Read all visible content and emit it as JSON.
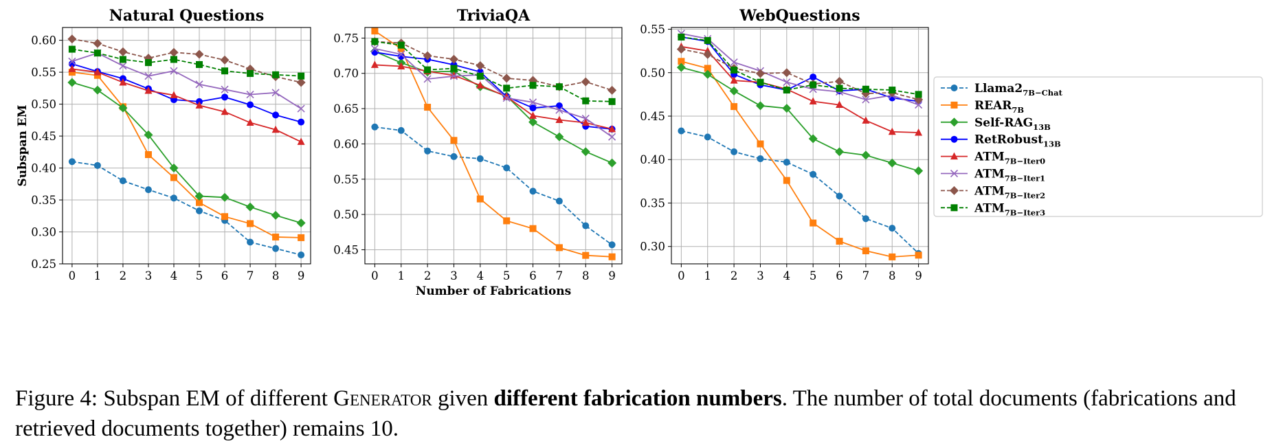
{
  "chart_data": [
    {
      "type": "line",
      "title": "Natural Questions",
      "ylabel": "Subspan EM",
      "xlabel": "",
      "x": [
        0,
        1,
        2,
        3,
        4,
        5,
        6,
        7,
        8,
        9
      ],
      "xticks": [
        "0",
        "1",
        "2",
        "3",
        "4",
        "5",
        "6",
        "7",
        "8",
        "9"
      ],
      "ylim": [
        0.25,
        0.62
      ],
      "yticks": [
        "0.25",
        "0.30",
        "0.35",
        "0.40",
        "0.45",
        "0.50",
        "0.55",
        "0.60"
      ],
      "grid": true,
      "series": [
        {
          "name": "Llama2 7B-Chat",
          "values": [
            0.41,
            0.404,
            0.38,
            0.366,
            0.353,
            0.333,
            0.318,
            0.284,
            0.274,
            0.264
          ]
        },
        {
          "name": "REAR 7B",
          "values": [
            0.55,
            0.545,
            0.496,
            0.421,
            0.385,
            0.346,
            0.324,
            0.313,
            0.292,
            0.291
          ]
        },
        {
          "name": "Self-RAG 13B",
          "values": [
            0.534,
            0.522,
            0.494,
            0.452,
            0.4,
            0.356,
            0.354,
            0.339,
            0.326,
            0.314
          ]
        },
        {
          "name": "RetRobust 13B",
          "values": [
            0.563,
            0.551,
            0.54,
            0.524,
            0.507,
            0.504,
            0.511,
            0.499,
            0.483,
            0.472
          ]
        },
        {
          "name": "ATM 7B-Iter0",
          "values": [
            0.555,
            0.55,
            0.534,
            0.521,
            0.514,
            0.498,
            0.488,
            0.471,
            0.46,
            0.441
          ]
        },
        {
          "name": "ATM 7B-Iter1",
          "values": [
            0.567,
            0.58,
            0.56,
            0.544,
            0.552,
            0.531,
            0.523,
            0.515,
            0.518,
            0.493
          ]
        },
        {
          "name": "ATM 7B-Iter2",
          "values": [
            0.602,
            0.595,
            0.582,
            0.572,
            0.581,
            0.578,
            0.569,
            0.555,
            0.543,
            0.534
          ]
        },
        {
          "name": "ATM 7B-Iter3",
          "values": [
            0.586,
            0.58,
            0.57,
            0.565,
            0.57,
            0.562,
            0.552,
            0.548,
            0.546,
            0.544
          ]
        }
      ]
    },
    {
      "type": "line",
      "title": "TriviaQA",
      "ylabel": "",
      "xlabel": "Number of Fabrications",
      "x": [
        0,
        1,
        2,
        3,
        4,
        5,
        6,
        7,
        8,
        9
      ],
      "xticks": [
        "0",
        "1",
        "2",
        "3",
        "4",
        "5",
        "6",
        "7",
        "8",
        "9"
      ],
      "ylim": [
        0.43,
        0.765
      ],
      "yticks": [
        "0.45",
        "0.50",
        "0.55",
        "0.60",
        "0.65",
        "0.70",
        "0.75"
      ],
      "grid": true,
      "series": [
        {
          "name": "Llama2 7B-Chat",
          "values": [
            0.624,
            0.619,
            0.59,
            0.582,
            0.579,
            0.566,
            0.533,
            0.519,
            0.484,
            0.457
          ]
        },
        {
          "name": "REAR 7B",
          "values": [
            0.76,
            0.735,
            0.652,
            0.605,
            0.522,
            0.491,
            0.48,
            0.453,
            0.442,
            0.44
          ]
        },
        {
          "name": "Self-RAG 13B",
          "values": [
            0.731,
            0.715,
            0.702,
            0.703,
            0.681,
            0.668,
            0.631,
            0.61,
            0.589,
            0.573
          ]
        },
        {
          "name": "RetRobust 13B",
          "values": [
            0.73,
            0.724,
            0.72,
            0.712,
            0.702,
            0.667,
            0.651,
            0.654,
            0.625,
            0.621
          ]
        },
        {
          "name": "ATM 7B-Iter0",
          "values": [
            0.712,
            0.71,
            0.703,
            0.697,
            0.683,
            0.667,
            0.64,
            0.634,
            0.63,
            0.621
          ]
        },
        {
          "name": "ATM 7B-Iter1",
          "values": [
            0.735,
            0.727,
            0.692,
            0.696,
            0.698,
            0.665,
            0.659,
            0.648,
            0.636,
            0.61
          ]
        },
        {
          "name": "ATM 7B-Iter2",
          "values": [
            0.745,
            0.743,
            0.725,
            0.72,
            0.711,
            0.693,
            0.69,
            0.681,
            0.688,
            0.676
          ]
        },
        {
          "name": "ATM 7B-Iter3",
          "values": [
            0.745,
            0.74,
            0.705,
            0.707,
            0.696,
            0.679,
            0.683,
            0.681,
            0.661,
            0.66
          ]
        }
      ]
    },
    {
      "type": "line",
      "title": "WebQuestions",
      "ylabel": "",
      "xlabel": "",
      "x": [
        0,
        1,
        2,
        3,
        4,
        5,
        6,
        7,
        8,
        9
      ],
      "xticks": [
        "0",
        "1",
        "2",
        "3",
        "4",
        "5",
        "6",
        "7",
        "8",
        "9"
      ],
      "ylim": [
        0.28,
        0.552
      ],
      "yticks": [
        "0.30",
        "0.35",
        "0.40",
        "0.45",
        "0.50",
        "0.55"
      ],
      "grid": true,
      "series": [
        {
          "name": "Llama2 7B-Chat",
          "values": [
            0.433,
            0.426,
            0.409,
            0.401,
            0.397,
            0.383,
            0.358,
            0.332,
            0.321,
            0.292
          ]
        },
        {
          "name": "REAR 7B",
          "values": [
            0.513,
            0.505,
            0.461,
            0.418,
            0.376,
            0.327,
            0.306,
            0.295,
            0.288,
            0.29
          ]
        },
        {
          "name": "Self-RAG 13B",
          "values": [
            0.506,
            0.498,
            0.479,
            0.462,
            0.459,
            0.424,
            0.409,
            0.405,
            0.396,
            0.387
          ]
        },
        {
          "name": "RetRobust 13B",
          "values": [
            0.541,
            0.536,
            0.498,
            0.486,
            0.48,
            0.495,
            0.479,
            0.481,
            0.471,
            0.467
          ]
        },
        {
          "name": "ATM 7B-Iter0",
          "values": [
            0.53,
            0.525,
            0.491,
            0.489,
            0.481,
            0.467,
            0.463,
            0.445,
            0.432,
            0.431
          ]
        },
        {
          "name": "ATM 7B-Iter1",
          "values": [
            0.545,
            0.539,
            0.512,
            0.502,
            0.489,
            0.481,
            0.478,
            0.469,
            0.474,
            0.463
          ]
        },
        {
          "name": "ATM 7B-Iter2",
          "values": [
            0.527,
            0.521,
            0.505,
            0.499,
            0.5,
            0.487,
            0.49,
            0.476,
            0.477,
            0.469
          ]
        },
        {
          "name": "ATM 7B-Iter3",
          "values": [
            0.541,
            0.537,
            0.503,
            0.489,
            0.48,
            0.486,
            0.482,
            0.481,
            0.48,
            0.475
          ]
        }
      ]
    }
  ],
  "legend": {
    "placement": "right",
    "entries": [
      {
        "base": "Llama2",
        "sub": "7B−Chat",
        "color": "#1f77b4",
        "marker": "circle",
        "dash": true
      },
      {
        "base": "REAR",
        "sub": "7B",
        "color": "#ff7f0e",
        "marker": "square",
        "dash": false
      },
      {
        "base": "Self-RAG",
        "sub": "13B",
        "color": "#2ca02c",
        "marker": "diamond",
        "dash": false
      },
      {
        "base": "RetRobust",
        "sub": "13B",
        "color": "#0000ff",
        "marker": "circle",
        "dash": false
      },
      {
        "base": "ATM",
        "sub": "7B−Iter0",
        "color": "#d62728",
        "marker": "triangle",
        "dash": false
      },
      {
        "base": "ATM",
        "sub": "7B−Iter1",
        "color": "#9467bd",
        "marker": "x",
        "dash": false
      },
      {
        "base": "ATM",
        "sub": "7B−Iter2",
        "color": "#8c564b",
        "marker": "diamond",
        "dash": true
      },
      {
        "base": "ATM",
        "sub": "7B−Iter3",
        "color": "#008000",
        "marker": "square",
        "dash": true
      }
    ]
  },
  "caption": {
    "prefix": "Figure 4: Subspan EM of different ",
    "generator": "Generator",
    "mid": " given ",
    "bold": "different fabrication numbers",
    "suffix": ". The number of total documents (fabrications and retrieved documents together) remains 10."
  }
}
